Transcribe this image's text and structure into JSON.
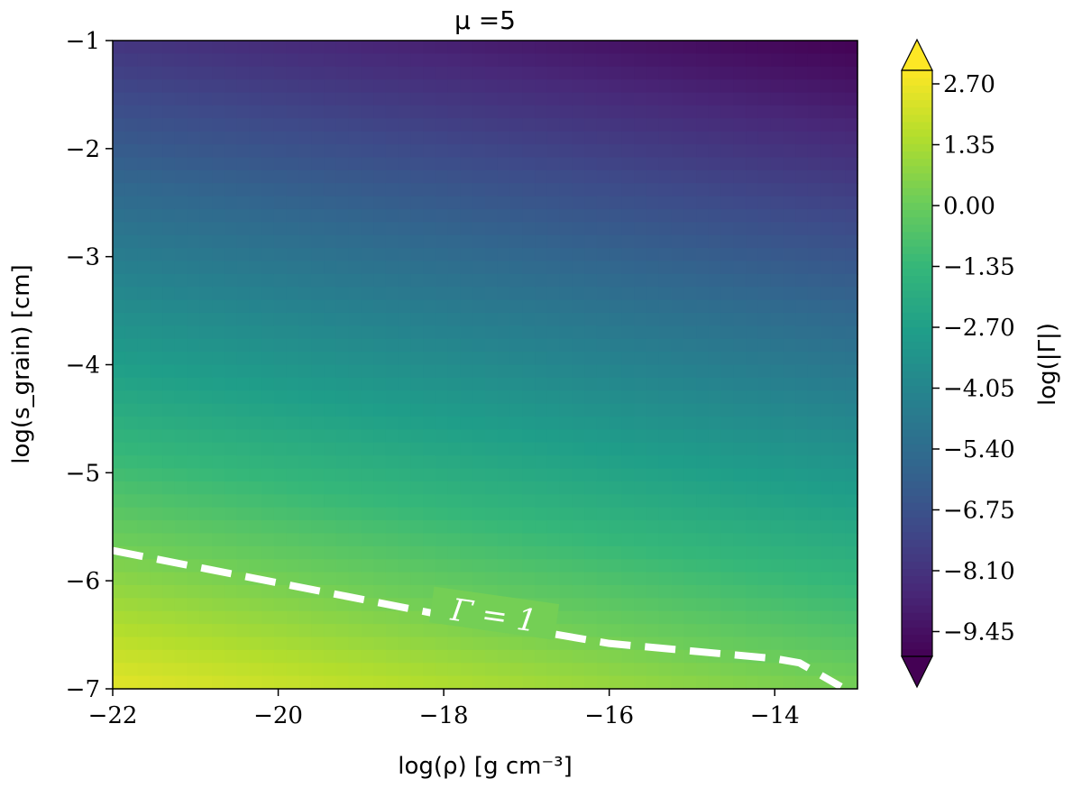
{
  "chart_data": {
    "type": "heatmap",
    "title": "μ =5",
    "xlabel": "log(ρ) [g cm⁻³]",
    "ylabel": "log(s_grain) [cm]",
    "xlim": [
      -22,
      -13
    ],
    "ylim": [
      -7,
      -1
    ],
    "x_ticks": [
      -22,
      -20,
      -18,
      -16,
      -14
    ],
    "y_ticks": [
      -7,
      -6,
      -5,
      -4,
      -3,
      -2,
      -1
    ],
    "x_tick_labels": [
      "−22",
      "−20",
      "−18",
      "−16",
      "−14"
    ],
    "y_tick_labels": [
      "−7",
      "−6",
      "−5",
      "−4",
      "−3",
      "−2",
      "−1"
    ],
    "colorbar": {
      "label": "log(|Γ|)",
      "colormap": "viridis",
      "range": [
        -10.0,
        3.0
      ],
      "extend": "both",
      "ticks": [
        2.7,
        1.35,
        0.0,
        -1.35,
        -2.7,
        -4.05,
        -5.4,
        -6.75,
        -8.1,
        -9.45
      ],
      "tick_labels": [
        "2.70",
        "1.35",
        "0.00",
        "−1.35",
        "−2.70",
        "−4.05",
        "−5.40",
        "−6.75",
        "−8.10",
        "−9.45"
      ]
    },
    "field_corners": {
      "bottom_left": 2.5,
      "bottom_right": 0.3,
      "top_left": -8.0,
      "top_right": -10.0
    },
    "contour": {
      "level": "Γ = 1",
      "style": "dashed",
      "color": "#ffffff",
      "x": [
        -22.0,
        -20.0,
        -18.0,
        -16.0,
        -14.0,
        -13.7,
        -13.2
      ],
      "y": [
        -5.72,
        -6.02,
        -6.32,
        -6.58,
        -6.72,
        -6.76,
        -6.98
      ]
    }
  }
}
